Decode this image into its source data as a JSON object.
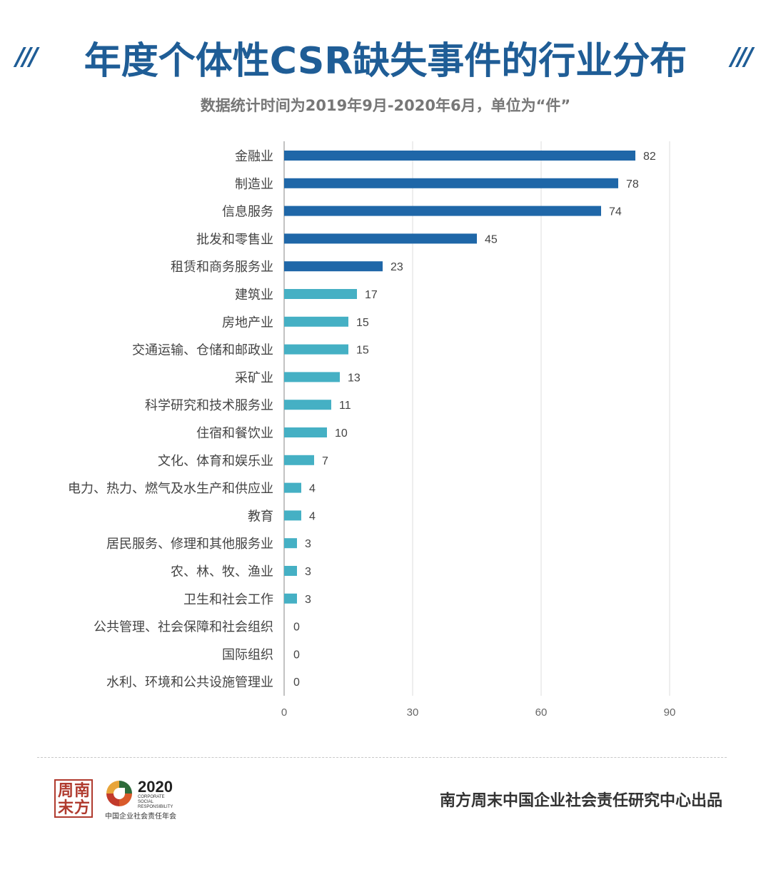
{
  "header": {
    "slashes": "///",
    "title": "年度个体性CSR缺失事件的行业分布",
    "subtitle": "数据统计时间为2019年9月-2020年6月，单位为“件”"
  },
  "chart_data": {
    "type": "bar",
    "orientation": "horizontal",
    "title": "年度个体性CSR缺失事件的行业分布",
    "subtitle": "数据统计时间为2019年9月-2020年6月，单位为“件”",
    "categories": [
      "金融业",
      "制造业",
      "信息服务",
      "批发和零售业",
      "租赁和商务服务业",
      "建筑业",
      "房地产业",
      "交通运输、仓储和邮政业",
      "采矿业",
      "科学研究和技术服务业",
      "住宿和餐饮业",
      "文化、体育和娱乐业",
      "电力、热力、燃气及水生产和供应业",
      "教育",
      "居民服务、修理和其他服务业",
      "农、林、牧、渔业",
      "卫生和社会工作",
      "公共管理、社会保障和社会组织",
      "国际组织",
      "水利、环境和公共设施管理业"
    ],
    "values": [
      82,
      78,
      74,
      45,
      23,
      17,
      15,
      15,
      13,
      11,
      10,
      7,
      4,
      4,
      3,
      3,
      3,
      0,
      0,
      0
    ],
    "xlim": [
      0,
      90
    ],
    "xticks": [
      0,
      30,
      60,
      90
    ],
    "grid": true,
    "colors": {
      "dark": "#1f67a8",
      "light": "#45b0c4",
      "dark_count": 5
    }
  },
  "footer": {
    "logo_nfzm_chars": [
      "周",
      "南",
      "末",
      "方"
    ],
    "logo_csr_year": "2020",
    "logo_csr_words": [
      "CORPORATE",
      "SOCIAL",
      "RESPONSIBILITY"
    ],
    "logo_csr_cn": "中国企业社会责任年会",
    "credit": "南方周末中国企业社会责任研究中心出品"
  }
}
